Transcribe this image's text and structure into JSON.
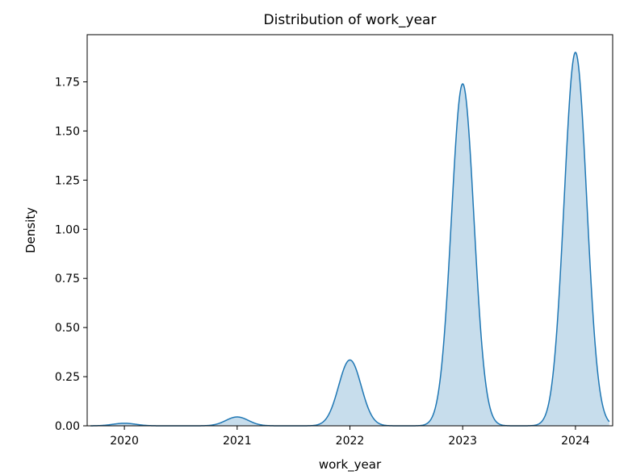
{
  "chart_data": {
    "type": "area",
    "title": "Distribution of work_year",
    "xlabel": "work_year",
    "ylabel": "Density",
    "xlim": [
      2019.67,
      2024.33
    ],
    "ylim": [
      0,
      1.99
    ],
    "x_ticks": [
      2020,
      2021,
      2022,
      2023,
      2024
    ],
    "x_tick_labels": [
      "2020",
      "2021",
      "2022",
      "2023",
      "2024"
    ],
    "y_ticks": [
      0,
      0.25,
      0.5,
      0.75,
      1.0,
      1.25,
      1.5,
      1.75
    ],
    "y_tick_labels": [
      "0.00",
      "0.25",
      "0.50",
      "0.75",
      "1.00",
      "1.25",
      "1.50",
      "1.75"
    ],
    "grid": false,
    "legend": "none",
    "series": [
      {
        "x_range": [
          2019.7,
          2024.3
        ],
        "peaks": [
          {
            "x": 2020,
            "density": 0.013
          },
          {
            "x": 2021,
            "density": 0.045
          },
          {
            "x": 2022,
            "density": 0.335
          },
          {
            "x": 2023,
            "density": 1.74
          },
          {
            "x": 2024,
            "density": 1.9
          }
        ],
        "peak_width": 0.1,
        "line_color": "#1f77b4",
        "fill_color": "#1f77b4",
        "fill_opacity": 0.25
      }
    ]
  }
}
